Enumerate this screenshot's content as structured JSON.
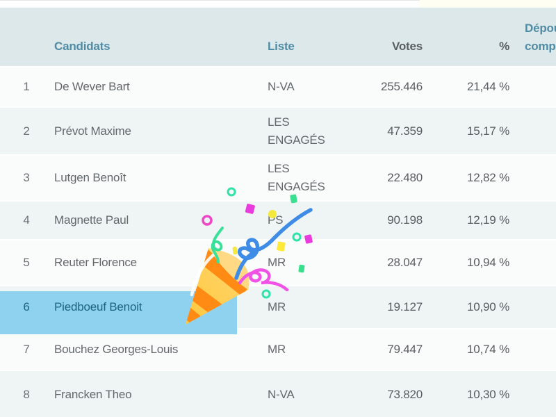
{
  "colors": {
    "header_bg": "#dde8eb",
    "header_text": "#4f8ca4",
    "row_text": "#63686b",
    "row_even_bg": "#eff4f4",
    "row_odd_bg": "#fafcfc",
    "selection_bg": "#8ed2ef",
    "selection_text": "#1d6480",
    "popper_cone": "#ffac33",
    "popper_stripe": "#ff8a14",
    "confetti_blue": "#3f8ce6",
    "confetti_green": "#3ae08f",
    "confetti_teal": "#2de3a7",
    "confetti_magenta": "#ea3bdc",
    "confetti_pink": "#ef52e5",
    "confetti_yellow": "#ffe93b"
  },
  "table": {
    "headers": {
      "rank": "",
      "candidate": "Candidats",
      "liste": "Liste",
      "votes": "Votes",
      "pct": "%",
      "extra_line1": "Dépouillement",
      "extra_line2": "complet"
    },
    "rows": [
      {
        "rank": "1",
        "candidate": "De Wever Bart",
        "liste": "N-VA",
        "votes": "255.446",
        "pct": "21,44 %",
        "selected": false
      },
      {
        "rank": "2",
        "candidate": "Prévot Maxime",
        "liste": "LES ENGAGÉS",
        "votes": "47.359",
        "pct": "15,17 %",
        "selected": false
      },
      {
        "rank": "3",
        "candidate": "Lutgen Benoît",
        "liste": "LES ENGAGÉS",
        "votes": "22.480",
        "pct": "12,82 %",
        "selected": false
      },
      {
        "rank": "4",
        "candidate": "Magnette Paul",
        "liste": "PS",
        "votes": "90.198",
        "pct": "12,19 %",
        "selected": false
      },
      {
        "rank": "5",
        "candidate": "Reuter Florence",
        "liste": "MR",
        "votes": "28.047",
        "pct": "10,94 %",
        "selected": false
      },
      {
        "rank": "6",
        "candidate": "Piedboeuf Benoit",
        "liste": "MR",
        "votes": "19.127",
        "pct": "10,90 %",
        "selected": true
      },
      {
        "rank": "7",
        "candidate": "Bouchez Georges-Louis",
        "liste": "MR",
        "votes": "79.447",
        "pct": "10,74 %",
        "selected": false
      },
      {
        "rank": "8",
        "candidate": "Francken Theo",
        "liste": "N-VA",
        "votes": "73.820",
        "pct": "10,30 %",
        "selected": false
      }
    ],
    "selected_rank": "6"
  },
  "overlay": {
    "illustration": "party-popper"
  }
}
